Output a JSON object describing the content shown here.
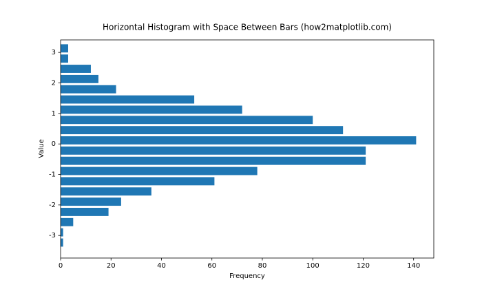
{
  "chart_data": {
    "type": "hbar_histogram",
    "title": "Horizontal Histogram with Space Between Bars (how2matplotlib.com)",
    "xlabel": "Frequency",
    "ylabel": "Value",
    "bins": [
      -3.4,
      -3.065,
      -2.73,
      -2.395,
      -2.06,
      -1.725,
      -1.39,
      -1.055,
      -0.72,
      -0.385,
      -0.05,
      0.285,
      0.62,
      0.955,
      1.29,
      1.625,
      1.96,
      2.295,
      2.63,
      2.965,
      3.3
    ],
    "values": [
      1,
      1,
      5,
      19,
      24,
      36,
      61,
      78,
      121,
      121,
      141,
      112,
      100,
      72,
      53,
      22,
      15,
      12,
      3,
      3
    ],
    "color": "#1f77b4",
    "rwidth": 0.8,
    "xlim": [
      0,
      148
    ],
    "xticks": [
      0,
      20,
      40,
      60,
      80,
      100,
      120,
      140
    ],
    "ylim": [
      -3.74,
      3.41
    ],
    "yticks": [
      -3,
      -2,
      -1,
      0,
      1,
      2,
      3
    ],
    "grid": false
  }
}
